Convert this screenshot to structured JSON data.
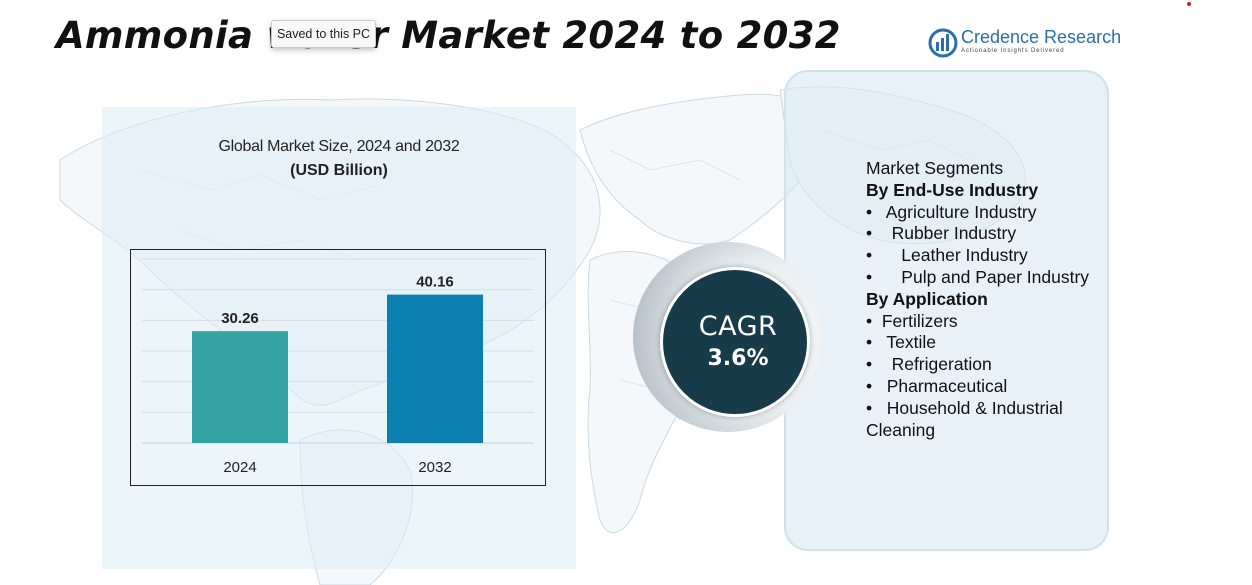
{
  "title": "Ammonia water Market 2024 to 2032",
  "tooltip": "Saved to this PC",
  "logo": {
    "name": "Credence Research",
    "tagline": "Actionable Insights Delivered"
  },
  "colors": {
    "bar_2024": "#35a3a3",
    "bar_2032": "#0a7fb0",
    "cagr_circle": "#173b48",
    "logo_blue": "#2a6fa8"
  },
  "chart_data": {
    "type": "bar",
    "title": "Global Market Size, 2024 and 2032",
    "subtitle": "(USD Billion)",
    "categories": [
      "2024",
      "2032"
    ],
    "values": [
      30.26,
      40.16
    ],
    "value_labels": [
      "30.26",
      "40.16"
    ],
    "colors": [
      "#35a3a3",
      "#0a7fb0"
    ],
    "ylim": [
      0,
      52.5
    ],
    "grid": true
  },
  "cagr": {
    "label": "CAGR",
    "value": "3.6%"
  },
  "segments": {
    "heading": "Market Segments",
    "groups": [
      {
        "name": "By End-Use Industry",
        "items": [
          "•   Agriculture Industry",
          "•    Rubber Industry",
          "•      Leather Industry",
          "•      Pulp and Paper Industry"
        ]
      },
      {
        "name": "By Application",
        "items": [
          "•  Fertilizers",
          "•   Textile",
          "•    Refrigeration",
          "•   Pharmaceutical",
          "•   Household & Industrial Cleaning"
        ]
      }
    ]
  }
}
